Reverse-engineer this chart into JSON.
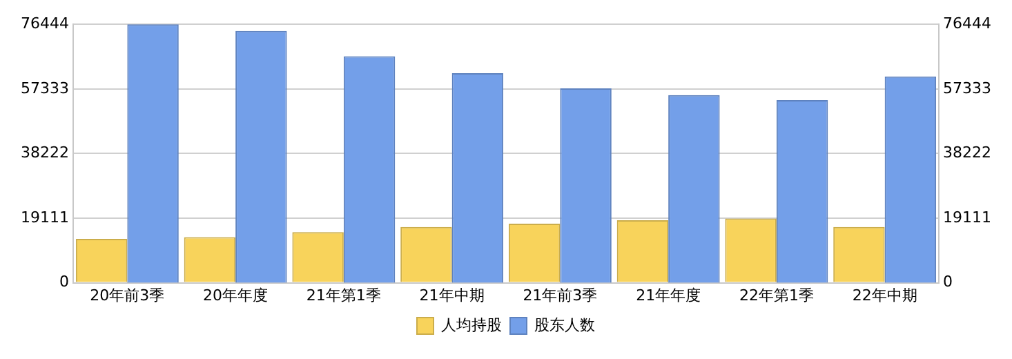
{
  "chart_data": {
    "type": "bar",
    "categories": [
      "20年前3季",
      "20年年度",
      "21年第1季",
      "21年中期",
      "21年前3季",
      "21年年度",
      "22年第1季",
      "22年中期"
    ],
    "series": [
      {
        "name": "人均持股",
        "color": "#f8d35b",
        "values": [
          13000,
          13500,
          15000,
          16500,
          17500,
          18500,
          19000,
          16500
        ]
      },
      {
        "name": "股东人数",
        "color": "#739fe9",
        "axis": "y2",
        "values": [
          76444,
          74500,
          67000,
          62000,
          57500,
          55500,
          54000,
          61000
        ]
      }
    ],
    "ylim": [
      0,
      76444
    ],
    "yticks": [
      0,
      19111,
      38222,
      57333,
      76444
    ],
    "y2lim": [
      0,
      76444
    ],
    "y2ticks": [
      0,
      19111,
      38222,
      57333,
      76444
    ],
    "grid": "y",
    "legend": "bottom"
  }
}
